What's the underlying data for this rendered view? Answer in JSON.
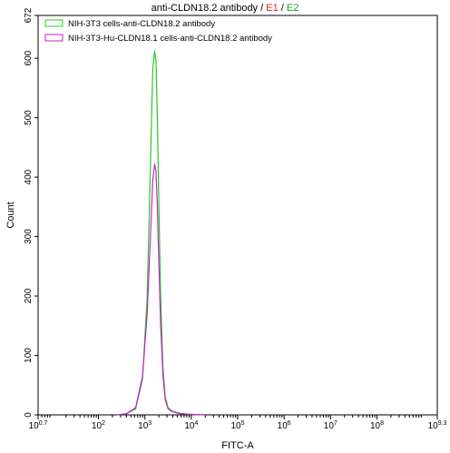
{
  "chart_data": {
    "type": "line",
    "title": {
      "main": "anti-CLDN18.2 antibody",
      "sep1": " / ",
      "e1": "E1",
      "sep2": " / ",
      "e2": "E2",
      "main_color": "#000000",
      "e1_color": "#d62020",
      "e2_color": "#1a9a1a"
    },
    "xlabel": "FITC-A",
    "ylabel": "Count",
    "x_scale": "log",
    "xlim_exp": [
      0.7,
      9.3
    ],
    "ylim": [
      0,
      672
    ],
    "x_ticks": [
      {
        "base": "10",
        "exp": "0.7",
        "v": 0.7
      },
      {
        "base": "10",
        "exp": "2",
        "v": 2
      },
      {
        "base": "10",
        "exp": "3",
        "v": 3
      },
      {
        "base": "10",
        "exp": "4",
        "v": 4
      },
      {
        "base": "10",
        "exp": "5",
        "v": 5
      },
      {
        "base": "10",
        "exp": "6",
        "v": 6
      },
      {
        "base": "10",
        "exp": "7",
        "v": 7
      },
      {
        "base": "10",
        "exp": "8",
        "v": 8
      },
      {
        "base": "10",
        "exp": "9.3",
        "v": 9.3
      }
    ],
    "y_ticks": [
      0,
      100,
      200,
      300,
      400,
      500,
      600,
      672
    ],
    "legend_position": "top-left",
    "series": [
      {
        "name": "NIH-3T3 cells-anti-CLDN18.2 antibody",
        "color": "#22cc22",
        "log_x": [
          2.4,
          2.6,
          2.8,
          2.95,
          3.05,
          3.12,
          3.17,
          3.21,
          3.24,
          3.27,
          3.3,
          3.34,
          3.39,
          3.44,
          3.5,
          3.6,
          3.75,
          3.95,
          4.3
        ],
        "y": [
          0,
          2,
          10,
          60,
          200,
          420,
          580,
          612,
          595,
          500,
          360,
          200,
          80,
          30,
          12,
          6,
          3,
          1,
          0
        ]
      },
      {
        "name": "NIH-3T3-Hu-CLDN18.1 cells-anti-CLDN18.2 antibody",
        "color": "#cc22cc",
        "log_x": [
          2.4,
          2.6,
          2.8,
          2.95,
          3.05,
          3.12,
          3.17,
          3.21,
          3.24,
          3.27,
          3.3,
          3.34,
          3.39,
          3.44,
          3.5,
          3.6,
          3.75,
          3.95,
          4.3
        ],
        "y": [
          0,
          2,
          12,
          65,
          170,
          300,
          395,
          422,
          410,
          350,
          260,
          150,
          65,
          25,
          10,
          5,
          2,
          1,
          0
        ]
      }
    ]
  }
}
